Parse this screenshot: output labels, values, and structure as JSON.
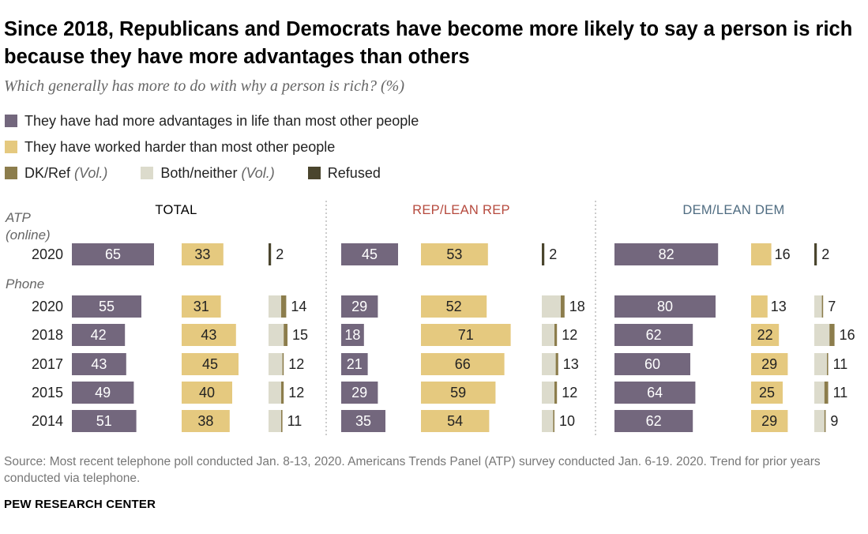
{
  "title": "Since 2018, Republicans and Democrats have become more likely to say a person is rich because they have more advantages than others",
  "subtitle": "Which generally has more to do with why a person is rich? (%)",
  "legend": {
    "advantages": "They have had more advantages in life than most other people",
    "worked_harder": "They have worked harder than most other people",
    "dk_ref": "DK/Ref",
    "dk_ref_vol": "(Vol.)",
    "both_neither": "Both/neither",
    "both_neither_vol": "(Vol.)",
    "refused": "Refused"
  },
  "source": "Source: Most recent telephone poll conducted Jan. 8-13, 2020. Americans Trends Panel (ATP) survey conducted Jan. 6-19. 2020. Trend for prior years conducted via telephone.",
  "credit": "PEW RESEARCH CENTER",
  "colors": {
    "advantages": "#73677d",
    "worked_harder": "#e5c97f",
    "dk_ref": "#8c7d4c",
    "both_neither": "#dcdbcc",
    "refused": "#4a452d",
    "rep": "#b64a3e",
    "dem": "#4f6c81",
    "group_label": "#000000"
  },
  "chart_data": {
    "type": "bar",
    "orientation": "horizontal",
    "mode_labels": [
      "ATP",
      "(online)",
      "Phone"
    ],
    "groups": [
      "TOTAL",
      "REP/LEAN REP",
      "DEM/LEAN DEM"
    ],
    "rows": [
      {
        "year": "2020",
        "mode": "online"
      },
      {
        "year": "2020",
        "mode": "phone"
      },
      {
        "year": "2018",
        "mode": "phone"
      },
      {
        "year": "2017",
        "mode": "phone"
      },
      {
        "year": "2015",
        "mode": "phone"
      },
      {
        "year": "2014",
        "mode": "phone"
      }
    ],
    "series": [
      {
        "name": "They have had more advantages in life than most other people",
        "values": {
          "TOTAL": [
            65,
            55,
            42,
            43,
            49,
            51
          ],
          "REP/LEAN REP": [
            45,
            29,
            18,
            21,
            29,
            35
          ],
          "DEM/LEAN DEM": [
            82,
            80,
            62,
            60,
            64,
            62
          ]
        }
      },
      {
        "name": "They have worked harder than most other people",
        "values": {
          "TOTAL": [
            33,
            31,
            43,
            45,
            40,
            38
          ],
          "REP/LEAN REP": [
            53,
            52,
            71,
            66,
            59,
            54
          ],
          "DEM/LEAN DEM": [
            16,
            13,
            22,
            29,
            25,
            29
          ]
        }
      },
      {
        "name": "DK/Ref",
        "values": {
          "TOTAL": [
            null,
            4,
            3,
            1,
            2,
            1
          ],
          "REP/LEAN REP": [
            null,
            3,
            2,
            2,
            2,
            1
          ],
          "DEM/LEAN DEM": [
            null,
            1,
            4,
            1,
            3,
            1
          ]
        }
      },
      {
        "name": "Both/neither",
        "values": {
          "TOTAL": [
            null,
            10,
            12,
            11,
            10,
            10
          ],
          "REP/LEAN REP": [
            null,
            15,
            10,
            11,
            10,
            9
          ],
          "DEM/LEAN DEM": [
            null,
            6,
            12,
            10,
            8,
            8
          ]
        }
      },
      {
        "name": "Refused",
        "values": {
          "TOTAL": [
            2,
            null,
            null,
            null,
            null,
            null
          ],
          "REP/LEAN REP": [
            2,
            null,
            null,
            null,
            null,
            null
          ],
          "DEM/LEAN DEM": [
            2,
            null,
            null,
            null,
            null,
            null
          ]
        }
      }
    ],
    "other_totals": {
      "TOTAL": [
        2,
        14,
        15,
        12,
        12,
        11
      ],
      "REP/LEAN REP": [
        2,
        18,
        12,
        13,
        12,
        10
      ],
      "DEM/LEAN DEM": [
        2,
        7,
        16,
        11,
        11,
        9
      ]
    }
  }
}
